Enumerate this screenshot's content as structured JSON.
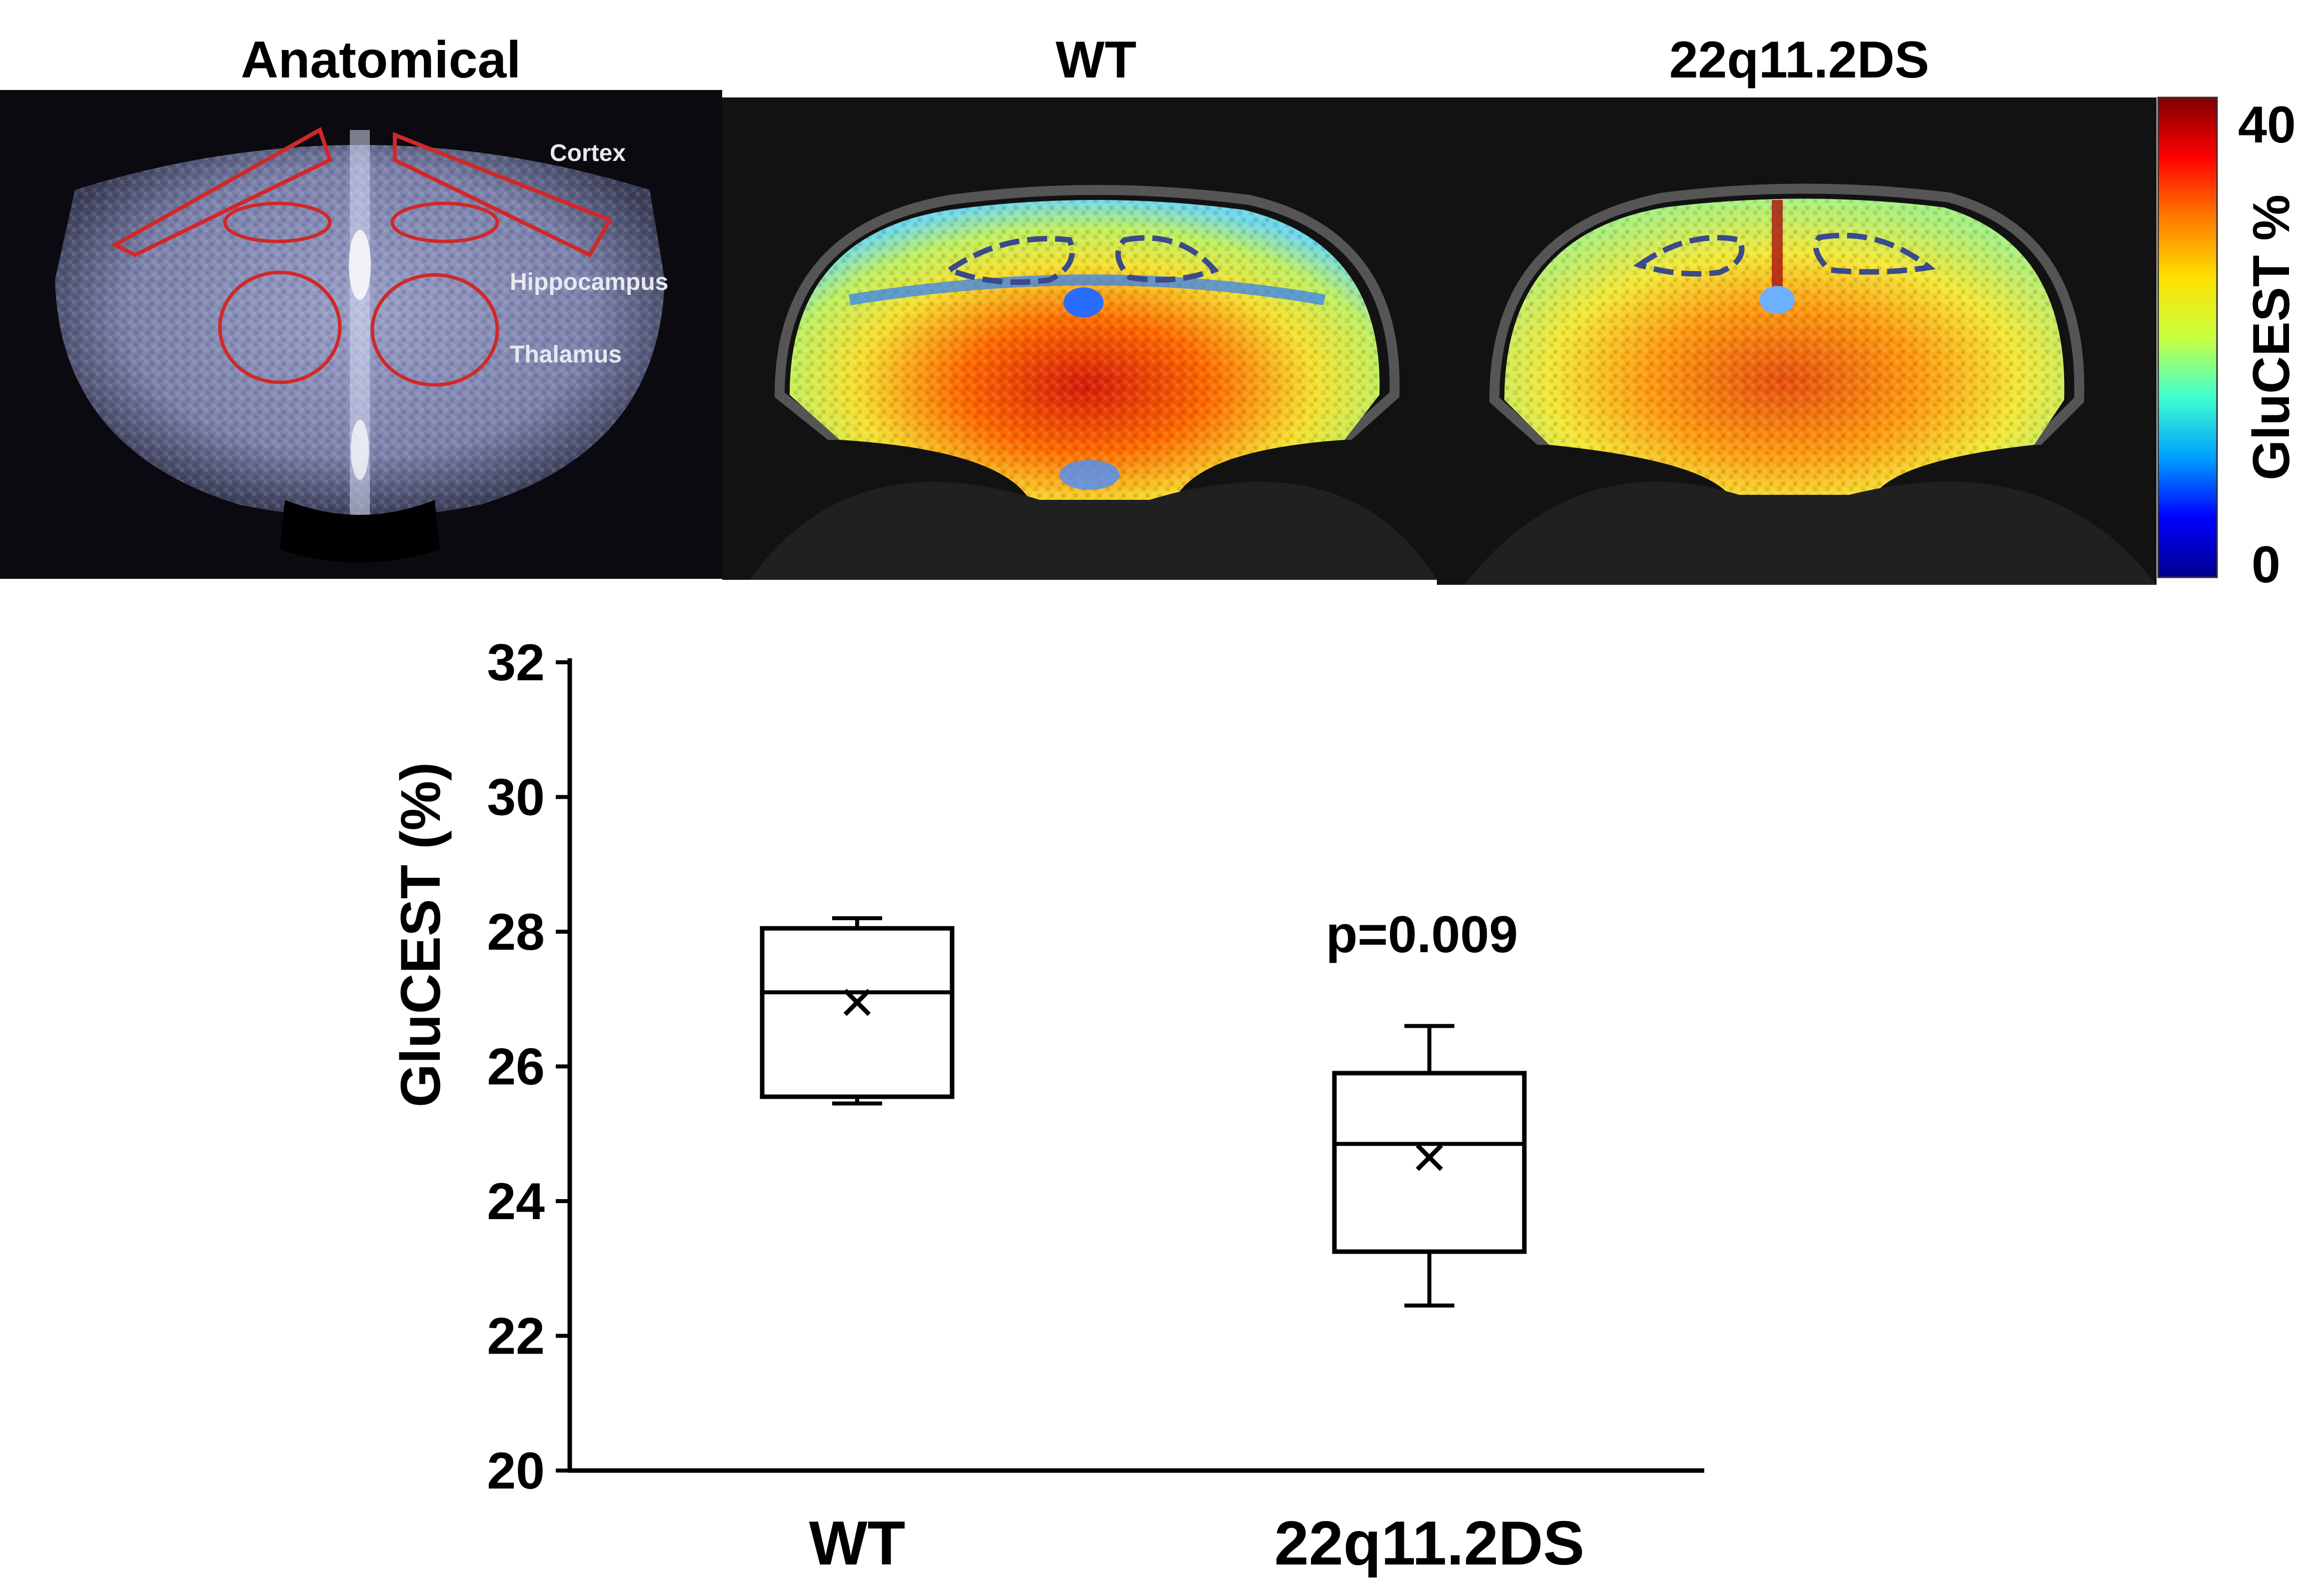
{
  "panels": {
    "anatomical": {
      "title": "Anatomical",
      "labels": [
        "Cortex",
        "Hippocampus",
        "Thalamus"
      ]
    },
    "wt": {
      "title": "WT"
    },
    "ds": {
      "title": "22q11.2DS"
    }
  },
  "colorbar": {
    "max_label": "40",
    "min_label": "0",
    "label": "GluCEST %",
    "colors": [
      "#00008f",
      "#0000ff",
      "#00a0ff",
      "#40ffd0",
      "#c8ff40",
      "#ffe000",
      "#ff7a00",
      "#ff0000",
      "#7f0000"
    ]
  },
  "chart_data": {
    "type": "box",
    "categories": [
      "WT",
      "22q11.2DS"
    ],
    "ylabel": "GluCEST (%)",
    "ylim": [
      20,
      32
    ],
    "yticks": [
      "20",
      "22",
      "24",
      "26",
      "28",
      "30",
      "32"
    ],
    "boxes": [
      {
        "min": 25.45,
        "q1": 25.55,
        "median": 27.1,
        "q3": 28.05,
        "max": 28.2,
        "mean": 26.95
      },
      {
        "min": 22.45,
        "q1": 23.25,
        "median": 24.85,
        "q3": 25.9,
        "max": 26.6,
        "mean": 24.65
      }
    ],
    "annotation": "p=0.009"
  }
}
